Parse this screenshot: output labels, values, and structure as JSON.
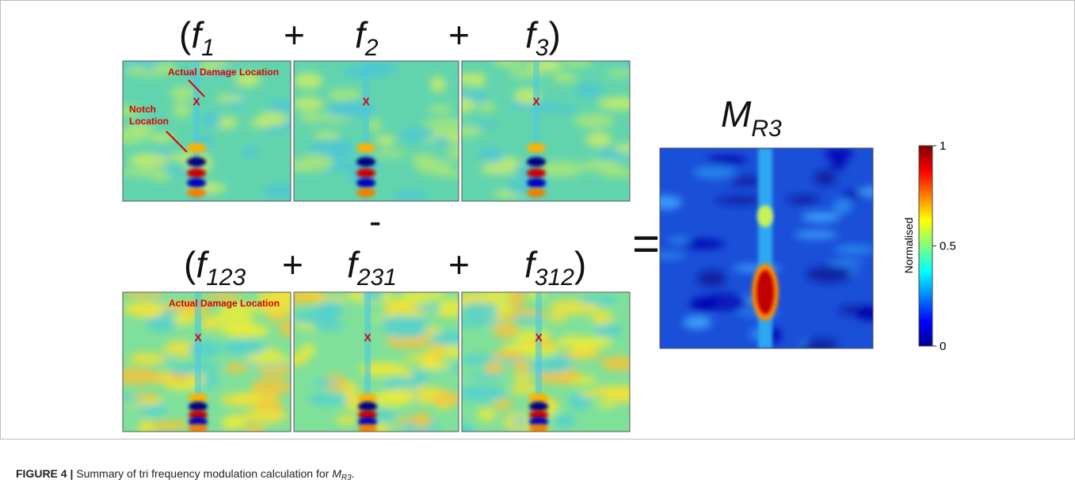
{
  "figure": {
    "open_paren": "(",
    "close_paren": ")",
    "plus": "+",
    "minus": "-",
    "equals": "=",
    "top_terms": [
      {
        "base": "f",
        "sub": "1"
      },
      {
        "base": "f",
        "sub": "2"
      },
      {
        "base": "f",
        "sub": "3"
      }
    ],
    "bottom_terms": [
      {
        "base": "f",
        "sub": "123"
      },
      {
        "base": "f",
        "sub": "231"
      },
      {
        "base": "f",
        "sub": "312"
      }
    ],
    "result": {
      "base": "M",
      "sub": "R3"
    },
    "annotations": {
      "actual": "Actual Damage Location",
      "notch_1": "Notch",
      "notch_2": "Location",
      "x_mark": "X"
    },
    "colorbar": {
      "label": "Normalised",
      "lim": [
        0,
        1
      ],
      "ticks": [
        0,
        0.5,
        1
      ]
    },
    "caption": {
      "label": "FIGURE 4 |",
      "text": " Summary of tri frequency modulation calculation for ",
      "base": "M",
      "sub": "R3",
      "end": "."
    }
  }
}
